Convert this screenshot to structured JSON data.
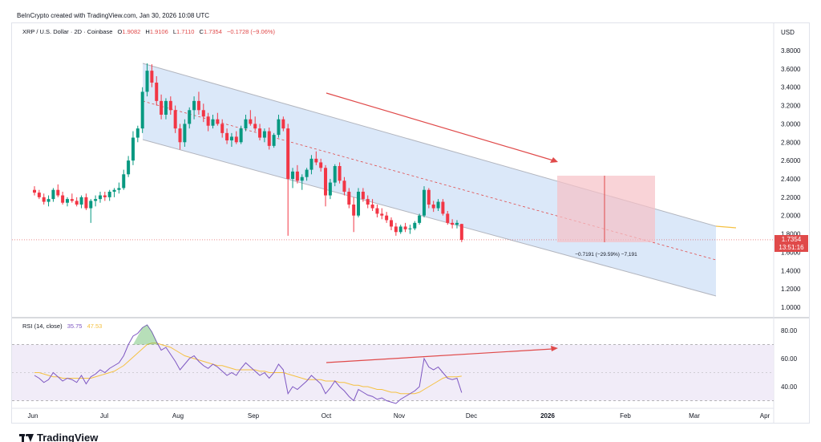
{
  "header": {
    "credit": "BeInCrypto created with TradingView.com, Jan 30, 2026 10:08 UTC"
  },
  "legend": {
    "symbol": "XRP / U.S. Dollar · 2D · Coinbase",
    "open_label": "O",
    "open": "1.9082",
    "high_label": "H",
    "high": "1.9106",
    "low_label": "L",
    "low": "1.7110",
    "close_label": "C",
    "close": "1.7354",
    "change": "−0.1728 (−9.06%)"
  },
  "currency": "USD",
  "rsi_legend": {
    "label": "RSI (14, close)",
    "rsi_value": "35.75",
    "ma_value": "47.53"
  },
  "price_tag": {
    "price": "1.7354",
    "countdown": "13:51:16"
  },
  "measure_text": "−0.7191 (−29.59%) −7,191",
  "footer": {
    "brand": "TradingView"
  },
  "colors": {
    "up": "#089981",
    "down": "#f23645",
    "channel": "#cfe0f7",
    "measure": "#f6c1c6",
    "rsi": "#7e57c2",
    "rsi_ma": "#f5c142",
    "arrow": "#e04a4a"
  },
  "chart_data": [
    {
      "type": "candlestick",
      "title": "XRP / U.S. Dollar · 2D · Coinbase",
      "x_ticks": [
        "Jun",
        "Jul",
        "Aug",
        "Sep",
        "Oct",
        "Nov",
        "Dec",
        "2026",
        "Feb",
        "Mar",
        "Apr"
      ],
      "y_ticks": [
        "3.8000",
        "3.6000",
        "3.4000",
        "3.2000",
        "3.0000",
        "2.8000",
        "2.6000",
        "2.4000",
        "2.2000",
        "2.0000",
        "1.8000",
        "1.6000",
        "1.4000",
        "1.2000",
        "1.0000"
      ],
      "ylim": [
        0.9,
        3.9
      ],
      "ohlc": [
        [
          2.28,
          2.32,
          2.22,
          2.25
        ],
        [
          2.25,
          2.28,
          2.18,
          2.2
        ],
        [
          2.2,
          2.24,
          2.12,
          2.15
        ],
        [
          2.15,
          2.22,
          2.1,
          2.18
        ],
        [
          2.18,
          2.3,
          2.15,
          2.28
        ],
        [
          2.28,
          2.34,
          2.2,
          2.22
        ],
        [
          2.22,
          2.26,
          2.12,
          2.14
        ],
        [
          2.14,
          2.2,
          2.1,
          2.18
        ],
        [
          2.18,
          2.24,
          2.14,
          2.16
        ],
        [
          2.16,
          2.2,
          2.1,
          2.12
        ],
        [
          2.12,
          2.22,
          2.08,
          2.2
        ],
        [
          2.2,
          2.24,
          2.06,
          2.08
        ],
        [
          2.08,
          2.18,
          1.92,
          2.16
        ],
        [
          2.16,
          2.22,
          2.1,
          2.18
        ],
        [
          2.18,
          2.26,
          2.14,
          2.22
        ],
        [
          2.22,
          2.26,
          2.16,
          2.2
        ],
        [
          2.2,
          2.28,
          2.16,
          2.26
        ],
        [
          2.26,
          2.3,
          2.2,
          2.28
        ],
        [
          2.28,
          2.36,
          2.24,
          2.3
        ],
        [
          2.3,
          2.5,
          2.28,
          2.45
        ],
        [
          2.45,
          2.65,
          2.42,
          2.6
        ],
        [
          2.6,
          2.92,
          2.55,
          2.85
        ],
        [
          2.85,
          2.98,
          2.8,
          2.95
        ],
        [
          2.95,
          3.4,
          2.9,
          3.35
        ],
        [
          3.35,
          3.66,
          3.3,
          3.58
        ],
        [
          3.58,
          3.65,
          3.4,
          3.45
        ],
        [
          3.45,
          3.52,
          3.2,
          3.25
        ],
        [
          3.25,
          3.32,
          3.05,
          3.1
        ],
        [
          3.1,
          3.28,
          3.05,
          3.25
        ],
        [
          3.25,
          3.3,
          3.1,
          3.15
        ],
        [
          3.15,
          3.2,
          2.9,
          2.95
        ],
        [
          2.95,
          3.0,
          2.72,
          2.8
        ],
        [
          2.8,
          3.05,
          2.75,
          3.0
        ],
        [
          3.0,
          3.18,
          2.95,
          3.15
        ],
        [
          3.15,
          3.3,
          3.05,
          3.25
        ],
        [
          3.25,
          3.35,
          3.1,
          3.15
        ],
        [
          3.15,
          3.22,
          3.02,
          3.08
        ],
        [
          3.08,
          3.12,
          2.92,
          2.98
        ],
        [
          2.98,
          3.1,
          2.95,
          3.05
        ],
        [
          3.05,
          3.12,
          2.98,
          3.0
        ],
        [
          3.0,
          3.05,
          2.85,
          2.9
        ],
        [
          2.9,
          2.95,
          2.78,
          2.82
        ],
        [
          2.82,
          2.9,
          2.75,
          2.86
        ],
        [
          2.86,
          2.92,
          2.78,
          2.8
        ],
        [
          2.8,
          2.98,
          2.78,
          2.95
        ],
        [
          2.95,
          3.1,
          2.92,
          3.05
        ],
        [
          3.05,
          3.15,
          2.98,
          3.0
        ],
        [
          3.0,
          3.08,
          2.92,
          2.95
        ],
        [
          2.95,
          3.0,
          2.82,
          2.85
        ],
        [
          2.85,
          2.95,
          2.8,
          2.92
        ],
        [
          2.92,
          2.96,
          2.72,
          2.76
        ],
        [
          2.76,
          2.9,
          2.74,
          2.88
        ],
        [
          2.88,
          3.1,
          2.85,
          3.05
        ],
        [
          3.05,
          3.08,
          2.92,
          2.95
        ],
        [
          2.95,
          3.0,
          1.78,
          2.4
        ],
        [
          2.4,
          2.52,
          2.3,
          2.48
        ],
        [
          2.48,
          2.55,
          2.35,
          2.38
        ],
        [
          2.38,
          2.45,
          2.28,
          2.42
        ],
        [
          2.42,
          2.52,
          2.38,
          2.5
        ],
        [
          2.5,
          2.66,
          2.45,
          2.62
        ],
        [
          2.62,
          2.7,
          2.55,
          2.58
        ],
        [
          2.58,
          2.62,
          2.48,
          2.52
        ],
        [
          2.52,
          2.55,
          2.1,
          2.22
        ],
        [
          2.22,
          2.4,
          2.18,
          2.36
        ],
        [
          2.36,
          2.56,
          2.32,
          2.54
        ],
        [
          2.54,
          2.58,
          2.35,
          2.38
        ],
        [
          2.38,
          2.42,
          2.22,
          2.26
        ],
        [
          2.26,
          2.3,
          2.08,
          2.12
        ],
        [
          2.12,
          2.2,
          1.82,
          2.0
        ],
        [
          2.0,
          2.3,
          1.98,
          2.26
        ],
        [
          2.26,
          2.3,
          2.15,
          2.18
        ],
        [
          2.18,
          2.22,
          2.08,
          2.12
        ],
        [
          2.12,
          2.18,
          2.05,
          2.08
        ],
        [
          2.08,
          2.12,
          1.98,
          2.02
        ],
        [
          2.02,
          2.08,
          1.96,
          2.0
        ],
        [
          2.0,
          2.04,
          1.92,
          1.95
        ],
        [
          1.95,
          1.98,
          1.84,
          1.88
        ],
        [
          1.88,
          1.92,
          1.78,
          1.82
        ],
        [
          1.82,
          1.9,
          1.8,
          1.88
        ],
        [
          1.88,
          1.92,
          1.82,
          1.85
        ],
        [
          1.85,
          1.9,
          1.8,
          1.86
        ],
        [
          1.86,
          1.94,
          1.84,
          1.92
        ],
        [
          1.92,
          2.02,
          1.9,
          2.0
        ],
        [
          2.0,
          2.32,
          1.98,
          2.28
        ],
        [
          2.28,
          2.3,
          2.08,
          2.12
        ],
        [
          2.12,
          2.16,
          2.04,
          2.08
        ],
        [
          2.08,
          2.18,
          2.05,
          2.15
        ],
        [
          2.15,
          2.18,
          2.0,
          2.02
        ],
        [
          2.02,
          2.05,
          1.9,
          1.92
        ],
        [
          1.92,
          1.96,
          1.86,
          1.9
        ],
        [
          1.9,
          1.95,
          1.86,
          1.92
        ],
        [
          1.9082,
          1.9106,
          1.711,
          1.7354
        ]
      ],
      "start_month_index": 0,
      "candles_per_month": 15.2
    },
    {
      "type": "line",
      "title": "RSI (14, close)",
      "y_ticks": [
        "80.00",
        "60.00",
        "40.00"
      ],
      "ylim": [
        25,
        85
      ],
      "series": [
        {
          "name": "RSI",
          "values": [
            48,
            46,
            43,
            45,
            50,
            47,
            44,
            46,
            45,
            43,
            48,
            42,
            47,
            49,
            52,
            50,
            53,
            55,
            57,
            62,
            70,
            76,
            78,
            82,
            84,
            79,
            72,
            66,
            68,
            63,
            58,
            52,
            56,
            60,
            62,
            58,
            55,
            53,
            56,
            54,
            51,
            48,
            50,
            48,
            53,
            57,
            54,
            51,
            48,
            50,
            46,
            50,
            56,
            52,
            35,
            40,
            38,
            41,
            44,
            48,
            45,
            42,
            35,
            39,
            44,
            40,
            37,
            33,
            30,
            38,
            36,
            34,
            33,
            31,
            32,
            30,
            29,
            28,
            31,
            33,
            35,
            37,
            40,
            60,
            54,
            52,
            54,
            50,
            46,
            45,
            46,
            35.75
          ]
        },
        {
          "name": "RSI-based MA",
          "values": [
            50,
            50,
            49,
            48,
            47,
            47,
            46,
            46,
            46,
            46,
            46,
            46,
            46,
            47,
            48,
            49,
            50,
            51,
            53,
            55,
            58,
            61,
            64,
            67,
            70,
            71,
            71,
            70,
            69,
            68,
            66,
            64,
            62,
            61,
            60,
            59,
            58,
            57,
            56,
            55,
            55,
            54,
            53,
            52,
            52,
            52,
            52,
            52,
            51,
            51,
            50,
            50,
            50,
            50,
            49,
            48,
            47,
            46,
            45,
            45,
            45,
            45,
            44,
            44,
            44,
            43,
            43,
            42,
            41,
            41,
            40,
            40,
            39,
            38,
            38,
            37,
            36,
            36,
            35,
            35,
            35,
            35,
            36,
            38,
            40,
            42,
            44,
            46,
            47,
            47,
            47,
            47.53
          ]
        }
      ]
    }
  ]
}
